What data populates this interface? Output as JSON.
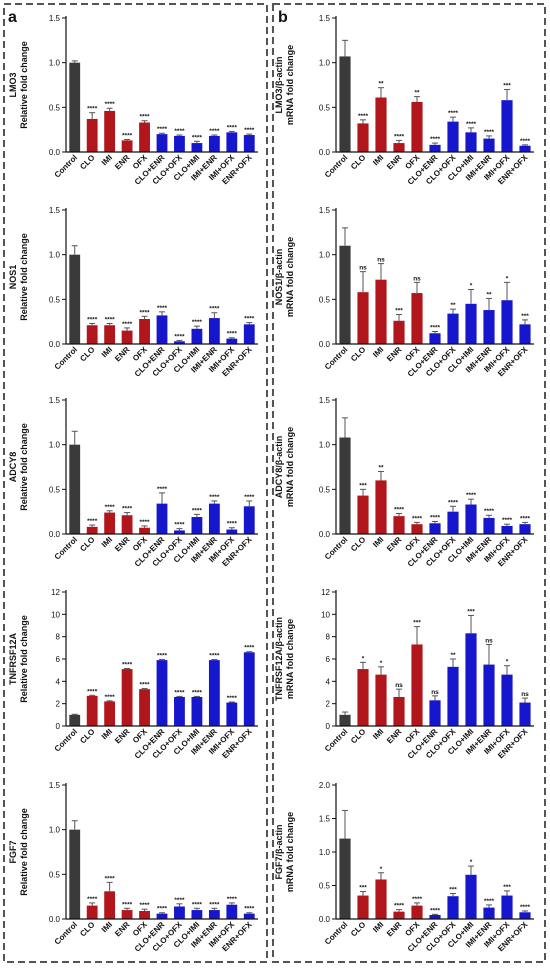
{
  "panels": [
    {
      "letter": "a"
    },
    {
      "letter": "b"
    }
  ],
  "colors": {
    "control": "#3a3a3a",
    "single": "#b0161b",
    "combo": "#1616cc"
  },
  "chart_data": [
    {
      "type": "bar",
      "panel": "a",
      "ylabel": [
        "LMO3",
        "Relative fold change"
      ],
      "ylim": [
        0,
        1.5
      ],
      "yticks": [
        0,
        0.5,
        1.0,
        1.5
      ],
      "ytick_labels": [
        "0.0",
        "0.5",
        "1.0",
        "1.5"
      ],
      "categories": [
        "Control",
        "CLO",
        "IMI",
        "ENR",
        "OFX",
        "CLO+ENR",
        "CLO+OFX",
        "CLO+IMI",
        "IMI+ENR",
        "IMI+OFX",
        "ENR+OFX"
      ],
      "values": [
        1.0,
        0.37,
        0.46,
        0.13,
        0.33,
        0.2,
        0.18,
        0.1,
        0.18,
        0.22,
        0.19
      ],
      "errors": [
        0.02,
        0.07,
        0.03,
        0.01,
        0.02,
        0.01,
        0.01,
        0.02,
        0.01,
        0.01,
        0.01
      ],
      "significance": [
        "",
        "****",
        "****",
        "****",
        "****",
        "****",
        "****",
        "****",
        "****",
        "****",
        "****"
      ]
    },
    {
      "type": "bar",
      "panel": "a",
      "ylabel": [
        "NOS1",
        "Relative fold change"
      ],
      "ylim": [
        0,
        1.5
      ],
      "yticks": [
        0,
        0.5,
        1.0,
        1.5
      ],
      "ytick_labels": [
        "0.0",
        "0.5",
        "1.0",
        "1.5"
      ],
      "categories": [
        "Control",
        "CLO",
        "IMI",
        "ENR",
        "OFX",
        "CLO+ENR",
        "CLO+OFX",
        "CLO+IMI",
        "IMI+ENR",
        "IMI+OFX",
        "ENR+OFX"
      ],
      "values": [
        1.0,
        0.21,
        0.21,
        0.15,
        0.28,
        0.32,
        0.03,
        0.17,
        0.29,
        0.06,
        0.22
      ],
      "errors": [
        0.1,
        0.02,
        0.02,
        0.03,
        0.03,
        0.04,
        0.01,
        0.03,
        0.06,
        0.01,
        0.02
      ],
      "significance": [
        "",
        "****",
        "****",
        "****",
        "****",
        "****",
        "****",
        "****",
        "****",
        "****",
        "****"
      ]
    },
    {
      "type": "bar",
      "panel": "a",
      "ylabel": [
        "ADCY8",
        "Relative fold change"
      ],
      "ylim": [
        0,
        1.5
      ],
      "yticks": [
        0,
        0.5,
        1.0,
        1.5
      ],
      "ytick_labels": [
        "0.0",
        "0.5",
        "1.0",
        "1.5"
      ],
      "categories": [
        "Control",
        "CLO",
        "IMI",
        "ENR",
        "OFX",
        "CLO+ENR",
        "CLO+OFX",
        "CLO+IMI",
        "IMI+ENR",
        "IMI+OFX",
        "ENR+OFX"
      ],
      "values": [
        1.0,
        0.08,
        0.24,
        0.21,
        0.07,
        0.34,
        0.04,
        0.19,
        0.34,
        0.05,
        0.31
      ],
      "errors": [
        0.15,
        0.02,
        0.02,
        0.03,
        0.02,
        0.12,
        0.02,
        0.03,
        0.03,
        0.02,
        0.06
      ],
      "significance": [
        "",
        "****",
        "****",
        "****",
        "****",
        "****",
        "****",
        "****",
        "****",
        "****",
        "****"
      ]
    },
    {
      "type": "bar",
      "panel": "a",
      "ylabel": [
        "TNFRSF12A",
        "Relative fold change"
      ],
      "ylim": [
        0,
        12
      ],
      "yticks": [
        0,
        2,
        4,
        6,
        8,
        10,
        12
      ],
      "ytick_labels": [
        "0",
        "2",
        "4",
        "6",
        "8",
        "10",
        "12"
      ],
      "categories": [
        "Control",
        "CLO",
        "IMI",
        "ENR",
        "OFX",
        "CLO+ENR",
        "CLO+OFX",
        "CLO+IMI",
        "IMI+ENR",
        "IMI+OFX",
        "ENR+OFX"
      ],
      "values": [
        1.0,
        2.7,
        2.2,
        5.1,
        3.3,
        5.9,
        2.6,
        2.6,
        5.9,
        2.1,
        6.6
      ],
      "errors": [
        0.05,
        0.05,
        0.05,
        0.05,
        0.05,
        0.05,
        0.05,
        0.05,
        0.05,
        0.05,
        0.05
      ],
      "significance": [
        "",
        "****",
        "****",
        "****",
        "****",
        "****",
        "****",
        "****",
        "****",
        "****",
        "****"
      ]
    },
    {
      "type": "bar",
      "panel": "a",
      "ylabel": [
        "FGF7",
        "Relative fold change"
      ],
      "ylim": [
        0,
        1.5
      ],
      "yticks": [
        0,
        0.5,
        1.0,
        1.5
      ],
      "ytick_labels": [
        "0.0",
        "0.5",
        "1.0",
        "1.5"
      ],
      "categories": [
        "Control",
        "CLO",
        "IMI",
        "ENR",
        "OFX",
        "CLO+ENR",
        "CLO+OFX",
        "CLO+IMI",
        "IMI+ENR",
        "IMI+OFX",
        "ENR+OFX"
      ],
      "values": [
        1.0,
        0.15,
        0.31,
        0.1,
        0.09,
        0.06,
        0.14,
        0.1,
        0.1,
        0.16,
        0.06
      ],
      "errors": [
        0.1,
        0.03,
        0.1,
        0.02,
        0.02,
        0.01,
        0.03,
        0.02,
        0.02,
        0.02,
        0.01
      ],
      "significance": [
        "",
        "****",
        "****",
        "****",
        "****",
        "****",
        "****",
        "****",
        "****",
        "****",
        "****"
      ]
    },
    {
      "type": "bar",
      "panel": "b",
      "ylabel": [
        "LMO3/β-actin",
        "mRNA fold change"
      ],
      "ylim": [
        0,
        1.5
      ],
      "yticks": [
        0,
        0.5,
        1.0,
        1.5
      ],
      "ytick_labels": [
        "0.0",
        "0.5",
        "1.0",
        "1.5"
      ],
      "categories": [
        "Control",
        "CLO",
        "IMI",
        "ENR",
        "OFX",
        "CLO+ENR",
        "CLO+OFX",
        "CLO+IMI",
        "IMI+ENR",
        "IMI+OFX",
        "ENR+OFX"
      ],
      "values": [
        1.07,
        0.32,
        0.61,
        0.1,
        0.56,
        0.08,
        0.34,
        0.22,
        0.15,
        0.58,
        0.07
      ],
      "errors": [
        0.18,
        0.04,
        0.11,
        0.03,
        0.06,
        0.02,
        0.05,
        0.05,
        0.03,
        0.12,
        0.01
      ],
      "significance": [
        "",
        "****",
        "**",
        "****",
        "**",
        "****",
        "****",
        "****",
        "****",
        "***",
        "****"
      ]
    },
    {
      "type": "bar",
      "panel": "b",
      "ylabel": [
        "NOS1/β-actin",
        "mRNA fold change"
      ],
      "ylim": [
        0,
        1.5
      ],
      "yticks": [
        0,
        0.5,
        1.0,
        1.5
      ],
      "ytick_labels": [
        "0.0",
        "0.5",
        "1.0",
        "1.5"
      ],
      "categories": [
        "Control",
        "CLO",
        "IMI",
        "ENR",
        "OFX",
        "CLO+ENR",
        "CLO+OFX",
        "CLO+IMI",
        "IMI+ENR",
        "IMI+OFX",
        "ENR+OFX"
      ],
      "values": [
        1.1,
        0.58,
        0.72,
        0.26,
        0.57,
        0.12,
        0.34,
        0.45,
        0.38,
        0.49,
        0.22
      ],
      "errors": [
        0.2,
        0.23,
        0.18,
        0.07,
        0.12,
        0.02,
        0.05,
        0.16,
        0.13,
        0.2,
        0.05
      ],
      "significance": [
        "",
        "ns",
        "ns",
        "***",
        "ns",
        "****",
        "**",
        "*",
        "**",
        "*",
        "***"
      ]
    },
    {
      "type": "bar",
      "panel": "b",
      "ylabel": [
        "ADCY8/β-actin",
        "mRNA fold change"
      ],
      "ylim": [
        0,
        1.5
      ],
      "yticks": [
        0,
        0.5,
        1.0,
        1.5
      ],
      "ytick_labels": [
        "0.0",
        "0.5",
        "1.0",
        "1.5"
      ],
      "categories": [
        "Control",
        "CLO",
        "IMI",
        "ENR",
        "OFX",
        "CLO+ENR",
        "CLO+OFX",
        "CLO+IMI",
        "IMI+ENR",
        "IMI+OFX",
        "ENR+OFX"
      ],
      "values": [
        1.08,
        0.43,
        0.6,
        0.2,
        0.11,
        0.12,
        0.25,
        0.33,
        0.18,
        0.09,
        0.11
      ],
      "errors": [
        0.22,
        0.07,
        0.1,
        0.03,
        0.02,
        0.02,
        0.06,
        0.06,
        0.03,
        0.02,
        0.02
      ],
      "significance": [
        "",
        "***",
        "**",
        "****",
        "****",
        "****",
        "****",
        "****",
        "****",
        "****",
        "****"
      ]
    },
    {
      "type": "bar",
      "panel": "b",
      "ylabel": [
        "TNFRSF12A/β-actin",
        "mRNA fold change"
      ],
      "ylim": [
        0,
        12
      ],
      "yticks": [
        0,
        2,
        4,
        6,
        8,
        10,
        12
      ],
      "ytick_labels": [
        "0",
        "2",
        "4",
        "6",
        "8",
        "10",
        "12"
      ],
      "categories": [
        "Control",
        "CLO",
        "IMI",
        "ENR",
        "OFX",
        "CLO+ENR",
        "CLO+OFX",
        "CLO+IMI",
        "IMI+ENR",
        "IMI+OFX",
        "ENR+OFX"
      ],
      "values": [
        1.0,
        5.1,
        4.6,
        2.6,
        7.3,
        2.3,
        5.3,
        8.3,
        5.5,
        4.6,
        2.1
      ],
      "errors": [
        0.25,
        0.6,
        0.7,
        0.7,
        1.6,
        0.4,
        0.7,
        1.6,
        1.8,
        0.8,
        0.4
      ],
      "significance": [
        "",
        "*",
        "*",
        "ns",
        "***",
        "ns",
        "**",
        "***",
        "ns",
        "*",
        "ns"
      ]
    },
    {
      "type": "bar",
      "panel": "b",
      "ylabel": [
        "FGF7/β-actin",
        "mRNA fold change"
      ],
      "ylim": [
        0,
        2.0
      ],
      "yticks": [
        0,
        0.5,
        1.0,
        1.5,
        2.0
      ],
      "ytick_labels": [
        "0.0",
        "0.5",
        "1.0",
        "1.5",
        "2.0"
      ],
      "categories": [
        "Control",
        "CLO",
        "IMI",
        "ENR",
        "OFX",
        "CLO+ENR",
        "CLO+OFX",
        "CLO+IMI",
        "IMI+ENR",
        "IMI+OFX",
        "ENR+OFX"
      ],
      "values": [
        1.2,
        0.35,
        0.59,
        0.11,
        0.2,
        0.06,
        0.34,
        0.66,
        0.17,
        0.35,
        0.1
      ],
      "errors": [
        0.42,
        0.06,
        0.1,
        0.03,
        0.04,
        0.01,
        0.04,
        0.13,
        0.04,
        0.07,
        0.02
      ],
      "significance": [
        "",
        "***",
        "*",
        "****",
        "****",
        "****",
        "***",
        "*",
        "****",
        "***",
        "****"
      ]
    }
  ]
}
